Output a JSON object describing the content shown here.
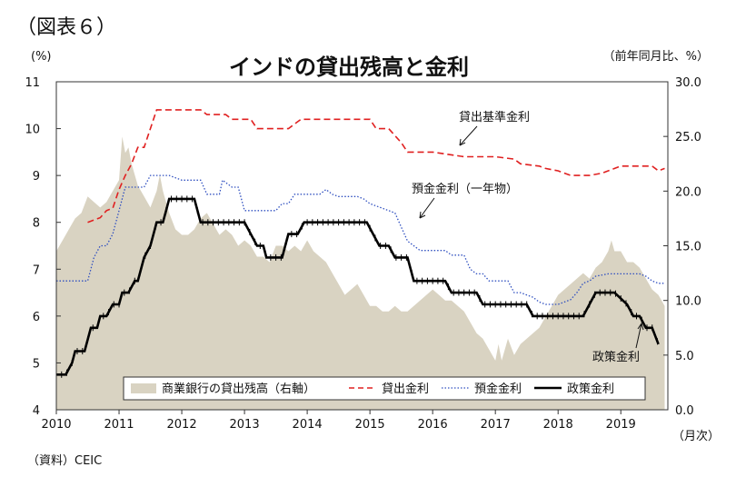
{
  "figure_label": "（図表６）",
  "source_note": "（資料）CEIC",
  "chart_data": {
    "type": "line",
    "title": "インドの貸出残高と金利",
    "left_axis": {
      "unit": "(%)",
      "ylim": [
        4,
        11
      ],
      "ticks": [
        4,
        5,
        6,
        7,
        8,
        9,
        10,
        11
      ]
    },
    "right_axis": {
      "unit": "（前年同月比、%）",
      "ylim": [
        0,
        30
      ],
      "ticks": [
        "0.0",
        "5.0",
        "10.0",
        "15.0",
        "20.0",
        "25.0",
        "30.0"
      ]
    },
    "x_axis": {
      "ticks": [
        "2010",
        "2011",
        "2012",
        "2013",
        "2014",
        "2015",
        "2016",
        "2017",
        "2018",
        "2019"
      ],
      "unit": "（月次）"
    },
    "grid": false,
    "legend": {
      "placement": "bottom-right",
      "entries": [
        "商業銀行の貸出残高（右軸）",
        "貸出金利",
        "預金金利",
        "政策金利"
      ]
    },
    "annotations": [
      "貸出基準金利",
      "預金金利（一年物）",
      "政策金利"
    ],
    "series": [
      {
        "name": "商業銀行の貸出残高（右軸）",
        "axis": "right",
        "style": "area",
        "color": "#d9d3c2",
        "points": [
          [
            2010.0,
            14.5
          ],
          [
            2010.1,
            15.5
          ],
          [
            2010.2,
            16.5
          ],
          [
            2010.3,
            17.5
          ],
          [
            2010.4,
            18.0
          ],
          [
            2010.5,
            19.5
          ],
          [
            2010.6,
            19.0
          ],
          [
            2010.7,
            18.5
          ],
          [
            2010.8,
            19.0
          ],
          [
            2010.9,
            20.0
          ],
          [
            2011.0,
            21.0
          ],
          [
            2011.05,
            25.0
          ],
          [
            2011.1,
            23.5
          ],
          [
            2011.15,
            24.0
          ],
          [
            2011.2,
            22.5
          ],
          [
            2011.3,
            20.5
          ],
          [
            2011.4,
            19.5
          ],
          [
            2011.5,
            18.5
          ],
          [
            2011.6,
            20.0
          ],
          [
            2011.65,
            21.5
          ],
          [
            2011.7,
            20.0
          ],
          [
            2011.8,
            18.0
          ],
          [
            2011.9,
            16.5
          ],
          [
            2012.0,
            16.0
          ],
          [
            2012.1,
            16.0
          ],
          [
            2012.2,
            16.5
          ],
          [
            2012.3,
            17.5
          ],
          [
            2012.4,
            18.0
          ],
          [
            2012.5,
            17.0
          ],
          [
            2012.6,
            16.0
          ],
          [
            2012.7,
            16.5
          ],
          [
            2012.8,
            16.0
          ],
          [
            2012.9,
            15.0
          ],
          [
            2013.0,
            15.5
          ],
          [
            2013.1,
            15.0
          ],
          [
            2013.2,
            14.0
          ],
          [
            2013.3,
            14.0
          ],
          [
            2013.4,
            13.5
          ],
          [
            2013.5,
            15.0
          ],
          [
            2013.6,
            15.0
          ],
          [
            2013.7,
            14.5
          ],
          [
            2013.8,
            15.0
          ],
          [
            2013.9,
            14.5
          ],
          [
            2014.0,
            15.5
          ],
          [
            2014.1,
            14.5
          ],
          [
            2014.2,
            14.0
          ],
          [
            2014.3,
            13.5
          ],
          [
            2014.4,
            12.5
          ],
          [
            2014.5,
            11.5
          ],
          [
            2014.6,
            10.5
          ],
          [
            2014.7,
            11.0
          ],
          [
            2014.8,
            11.5
          ],
          [
            2014.9,
            10.5
          ],
          [
            2015.0,
            9.5
          ],
          [
            2015.1,
            9.5
          ],
          [
            2015.2,
            9.0
          ],
          [
            2015.3,
            9.0
          ],
          [
            2015.4,
            9.5
          ],
          [
            2015.5,
            9.0
          ],
          [
            2015.6,
            9.0
          ],
          [
            2015.7,
            9.5
          ],
          [
            2015.8,
            10.0
          ],
          [
            2015.9,
            10.5
          ],
          [
            2016.0,
            11.0
          ],
          [
            2016.1,
            10.5
          ],
          [
            2016.2,
            10.0
          ],
          [
            2016.3,
            10.0
          ],
          [
            2016.4,
            9.5
          ],
          [
            2016.5,
            9.0
          ],
          [
            2016.6,
            8.0
          ],
          [
            2016.7,
            7.0
          ],
          [
            2016.8,
            6.5
          ],
          [
            2016.9,
            5.5
          ],
          [
            2017.0,
            4.5
          ],
          [
            2017.05,
            6.0
          ],
          [
            2017.1,
            4.5
          ],
          [
            2017.2,
            6.5
          ],
          [
            2017.3,
            5.0
          ],
          [
            2017.4,
            6.0
          ],
          [
            2017.5,
            6.5
          ],
          [
            2017.6,
            7.0
          ],
          [
            2017.7,
            7.5
          ],
          [
            2017.8,
            8.5
          ],
          [
            2017.9,
            9.5
          ],
          [
            2018.0,
            10.5
          ],
          [
            2018.1,
            11.0
          ],
          [
            2018.2,
            11.5
          ],
          [
            2018.3,
            12.0
          ],
          [
            2018.4,
            12.5
          ],
          [
            2018.5,
            12.0
          ],
          [
            2018.6,
            13.0
          ],
          [
            2018.7,
            13.5
          ],
          [
            2018.8,
            14.5
          ],
          [
            2018.85,
            15.5
          ],
          [
            2018.9,
            14.5
          ],
          [
            2019.0,
            14.5
          ],
          [
            2019.1,
            13.5
          ],
          [
            2019.2,
            13.5
          ],
          [
            2019.3,
            13.0
          ],
          [
            2019.4,
            12.0
          ],
          [
            2019.5,
            11.0
          ],
          [
            2019.6,
            10.5
          ],
          [
            2019.7,
            9.5
          ]
        ]
      },
      {
        "name": "貸出金利",
        "axis": "left",
        "style": "dashed",
        "color": "#e02020",
        "points": [
          [
            2010.5,
            8.0
          ],
          [
            2010.7,
            8.1
          ],
          [
            2010.8,
            8.25
          ],
          [
            2010.9,
            8.3
          ],
          [
            2011.0,
            8.7
          ],
          [
            2011.1,
            9.0
          ],
          [
            2011.2,
            9.25
          ],
          [
            2011.3,
            9.6
          ],
          [
            2011.4,
            9.6
          ],
          [
            2011.5,
            10.0
          ],
          [
            2011.6,
            10.4
          ],
          [
            2011.7,
            10.4
          ],
          [
            2012.0,
            10.4
          ],
          [
            2012.3,
            10.4
          ],
          [
            2012.4,
            10.3
          ],
          [
            2012.7,
            10.3
          ],
          [
            2012.8,
            10.2
          ],
          [
            2013.0,
            10.2
          ],
          [
            2013.1,
            10.2
          ],
          [
            2013.2,
            10.0
          ],
          [
            2013.5,
            10.0
          ],
          [
            2013.7,
            10.0
          ],
          [
            2013.8,
            10.1
          ],
          [
            2013.9,
            10.2
          ],
          [
            2014.0,
            10.2
          ],
          [
            2015.0,
            10.2
          ],
          [
            2015.1,
            10.0
          ],
          [
            2015.3,
            10.0
          ],
          [
            2015.5,
            9.7
          ],
          [
            2015.6,
            9.5
          ],
          [
            2016.0,
            9.5
          ],
          [
            2016.5,
            9.4
          ],
          [
            2017.0,
            9.4
          ],
          [
            2017.3,
            9.35
          ],
          [
            2017.4,
            9.25
          ],
          [
            2017.7,
            9.2
          ],
          [
            2017.8,
            9.15
          ],
          [
            2018.0,
            9.1
          ],
          [
            2018.2,
            9.0
          ],
          [
            2018.5,
            9.0
          ],
          [
            2018.7,
            9.05
          ],
          [
            2019.0,
            9.2
          ],
          [
            2019.5,
            9.2
          ],
          [
            2019.6,
            9.1
          ],
          [
            2019.7,
            9.15
          ]
        ]
      },
      {
        "name": "預金金利",
        "axis": "left",
        "style": "dotted",
        "color": "#3050c0",
        "points": [
          [
            2010.0,
            6.75
          ],
          [
            2010.5,
            6.75
          ],
          [
            2010.6,
            7.25
          ],
          [
            2010.7,
            7.5
          ],
          [
            2010.8,
            7.5
          ],
          [
            2010.9,
            7.75
          ],
          [
            2011.0,
            8.25
          ],
          [
            2011.1,
            8.75
          ],
          [
            2011.2,
            8.75
          ],
          [
            2011.3,
            8.75
          ],
          [
            2011.4,
            8.75
          ],
          [
            2011.5,
            9.0
          ],
          [
            2011.6,
            9.0
          ],
          [
            2011.7,
            9.0
          ],
          [
            2011.8,
            9.0
          ],
          [
            2012.0,
            8.9
          ],
          [
            2012.1,
            8.9
          ],
          [
            2012.2,
            8.9
          ],
          [
            2012.3,
            8.9
          ],
          [
            2012.4,
            8.6
          ],
          [
            2012.5,
            8.6
          ],
          [
            2012.6,
            8.6
          ],
          [
            2012.65,
            8.9
          ],
          [
            2012.8,
            8.75
          ],
          [
            2012.9,
            8.75
          ],
          [
            2013.0,
            8.25
          ],
          [
            2013.1,
            8.25
          ],
          [
            2013.2,
            8.25
          ],
          [
            2013.3,
            8.25
          ],
          [
            2013.4,
            8.25
          ],
          [
            2013.5,
            8.25
          ],
          [
            2013.6,
            8.4
          ],
          [
            2013.7,
            8.4
          ],
          [
            2013.8,
            8.6
          ],
          [
            2013.9,
            8.6
          ],
          [
            2014.0,
            8.6
          ],
          [
            2014.1,
            8.6
          ],
          [
            2014.2,
            8.6
          ],
          [
            2014.3,
            8.7
          ],
          [
            2014.4,
            8.6
          ],
          [
            2014.5,
            8.55
          ],
          [
            2014.6,
            8.55
          ],
          [
            2014.7,
            8.55
          ],
          [
            2014.8,
            8.55
          ],
          [
            2014.9,
            8.5
          ],
          [
            2015.0,
            8.4
          ],
          [
            2015.1,
            8.35
          ],
          [
            2015.2,
            8.3
          ],
          [
            2015.3,
            8.25
          ],
          [
            2015.4,
            8.2
          ],
          [
            2015.5,
            7.9
          ],
          [
            2015.6,
            7.6
          ],
          [
            2015.7,
            7.5
          ],
          [
            2015.8,
            7.4
          ],
          [
            2015.9,
            7.4
          ],
          [
            2016.0,
            7.4
          ],
          [
            2016.2,
            7.4
          ],
          [
            2016.3,
            7.3
          ],
          [
            2016.5,
            7.3
          ],
          [
            2016.6,
            7.0
          ],
          [
            2016.7,
            6.9
          ],
          [
            2016.8,
            6.9
          ],
          [
            2016.9,
            6.75
          ],
          [
            2017.0,
            6.75
          ],
          [
            2017.2,
            6.75
          ],
          [
            2017.3,
            6.5
          ],
          [
            2017.4,
            6.5
          ],
          [
            2017.6,
            6.4
          ],
          [
            2017.7,
            6.3
          ],
          [
            2017.8,
            6.25
          ],
          [
            2017.9,
            6.25
          ],
          [
            2018.0,
            6.25
          ],
          [
            2018.2,
            6.35
          ],
          [
            2018.3,
            6.5
          ],
          [
            2018.4,
            6.7
          ],
          [
            2018.5,
            6.75
          ],
          [
            2018.6,
            6.85
          ],
          [
            2018.8,
            6.9
          ],
          [
            2019.0,
            6.9
          ],
          [
            2019.3,
            6.9
          ],
          [
            2019.4,
            6.85
          ],
          [
            2019.5,
            6.75
          ],
          [
            2019.6,
            6.7
          ],
          [
            2019.7,
            6.7
          ]
        ]
      },
      {
        "name": "政策金利",
        "axis": "left",
        "style": "solid-marker",
        "color": "#000000",
        "points": [
          [
            2010.0,
            4.75
          ],
          [
            2010.15,
            4.75
          ],
          [
            2010.25,
            5.0
          ],
          [
            2010.3,
            5.25
          ],
          [
            2010.45,
            5.25
          ],
          [
            2010.55,
            5.75
          ],
          [
            2010.65,
            5.75
          ],
          [
            2010.7,
            6.0
          ],
          [
            2010.8,
            6.0
          ],
          [
            2010.9,
            6.25
          ],
          [
            2011.0,
            6.25
          ],
          [
            2011.05,
            6.5
          ],
          [
            2011.15,
            6.5
          ],
          [
            2011.25,
            6.75
          ],
          [
            2011.3,
            6.75
          ],
          [
            2011.4,
            7.25
          ],
          [
            2011.5,
            7.5
          ],
          [
            2011.6,
            8.0
          ],
          [
            2011.7,
            8.0
          ],
          [
            2011.75,
            8.25
          ],
          [
            2011.8,
            8.5
          ],
          [
            2012.0,
            8.5
          ],
          [
            2012.2,
            8.5
          ],
          [
            2012.3,
            8.0
          ],
          [
            2012.6,
            8.0
          ],
          [
            2012.7,
            8.0
          ],
          [
            2013.0,
            8.0
          ],
          [
            2013.1,
            7.75
          ],
          [
            2013.2,
            7.5
          ],
          [
            2013.3,
            7.5
          ],
          [
            2013.35,
            7.25
          ],
          [
            2013.6,
            7.25
          ],
          [
            2013.65,
            7.5
          ],
          [
            2013.7,
            7.75
          ],
          [
            2013.85,
            7.75
          ],
          [
            2013.95,
            8.0
          ],
          [
            2014.0,
            8.0
          ],
          [
            2014.95,
            8.0
          ],
          [
            2015.05,
            7.75
          ],
          [
            2015.15,
            7.5
          ],
          [
            2015.3,
            7.5
          ],
          [
            2015.4,
            7.25
          ],
          [
            2015.6,
            7.25
          ],
          [
            2015.7,
            6.75
          ],
          [
            2016.2,
            6.75
          ],
          [
            2016.3,
            6.5
          ],
          [
            2016.7,
            6.5
          ],
          [
            2016.8,
            6.25
          ],
          [
            2017.5,
            6.25
          ],
          [
            2017.6,
            6.0
          ],
          [
            2018.4,
            6.0
          ],
          [
            2018.5,
            6.25
          ],
          [
            2018.6,
            6.5
          ],
          [
            2018.9,
            6.5
          ],
          [
            2019.1,
            6.25
          ],
          [
            2019.2,
            6.0
          ],
          [
            2019.3,
            6.0
          ],
          [
            2019.4,
            5.75
          ],
          [
            2019.5,
            5.75
          ],
          [
            2019.6,
            5.4
          ]
        ]
      }
    ]
  }
}
